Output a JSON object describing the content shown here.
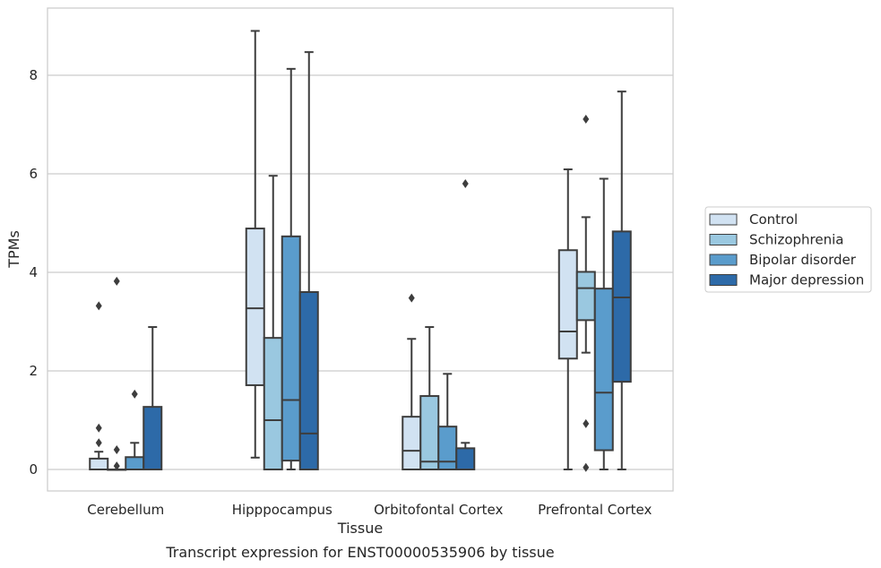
{
  "chart_data": {
    "type": "box",
    "xlabel": "Tissue",
    "ylabel": "TPMs",
    "caption": "Transcript expression for ENST00000535906 by tissue",
    "ylim": [
      -0.42,
      9.3
    ],
    "yticks": [
      "0",
      "2",
      "4",
      "6",
      "8"
    ],
    "grid": "horizontal",
    "legend_position": "right",
    "categories": [
      "Cerebellum",
      "Hipppocampus",
      "Orbitofontal Cortex",
      "Prefrontal Cortex"
    ],
    "series": [
      {
        "name": "Control",
        "color": "#d1e2f2",
        "boxes": [
          {
            "whislo": 0.0,
            "q1": 0.0,
            "med": 0.0,
            "q3": 0.22,
            "whishi": 0.36,
            "fliers": [
              0.54,
              0.84,
              3.32
            ]
          },
          {
            "whislo": 0.24,
            "q1": 1.71,
            "med": 3.27,
            "q3": 4.89,
            "whishi": 8.9,
            "fliers": []
          },
          {
            "whislo": 0.0,
            "q1": 0.0,
            "med": 0.38,
            "q3": 1.07,
            "whishi": 2.65,
            "fliers": [
              3.48
            ]
          },
          {
            "whislo": 0.0,
            "q1": 2.25,
            "med": 2.8,
            "q3": 4.45,
            "whishi": 6.09,
            "fliers": []
          }
        ]
      },
      {
        "name": "Schizophrenia",
        "color": "#9ac8e0",
        "boxes": [
          {
            "whislo": 0.0,
            "q1": 0.0,
            "med": 0.0,
            "q3": 0.0,
            "whishi": 0.0,
            "fliers": [
              0.07,
              0.4,
              3.82
            ]
          },
          {
            "whislo": 0.0,
            "q1": 0.0,
            "med": 1.0,
            "q3": 2.67,
            "whishi": 5.96,
            "fliers": []
          },
          {
            "whislo": 0.0,
            "q1": 0.0,
            "med": 0.16,
            "q3": 1.49,
            "whishi": 2.89,
            "fliers": []
          },
          {
            "whislo": 2.37,
            "q1": 3.03,
            "med": 3.68,
            "q3": 4.01,
            "whishi": 5.12,
            "fliers": [
              0.04,
              0.93,
              7.11
            ]
          }
        ]
      },
      {
        "name": "Bipolar disorder",
        "color": "#5a9ccc",
        "boxes": [
          {
            "whislo": 0.0,
            "q1": 0.0,
            "med": 0.0,
            "q3": 0.25,
            "whishi": 0.54,
            "fliers": [
              1.53
            ]
          },
          {
            "whislo": 0.0,
            "q1": 0.18,
            "med": 1.41,
            "q3": 4.73,
            "whishi": 8.13,
            "fliers": []
          },
          {
            "whislo": 0.0,
            "q1": 0.0,
            "med": 0.16,
            "q3": 0.87,
            "whishi": 1.94,
            "fliers": []
          },
          {
            "whislo": 0.0,
            "q1": 0.39,
            "med": 1.56,
            "q3": 3.67,
            "whishi": 5.9,
            "fliers": []
          }
        ]
      },
      {
        "name": "Major depression",
        "color": "#2d6aa8",
        "boxes": [
          {
            "whislo": 0.0,
            "q1": 0.0,
            "med": 0.0,
            "q3": 1.27,
            "whishi": 2.89,
            "fliers": []
          },
          {
            "whislo": 0.0,
            "q1": 0.0,
            "med": 0.73,
            "q3": 3.6,
            "whishi": 8.47,
            "fliers": []
          },
          {
            "whislo": 0.0,
            "q1": 0.0,
            "med": 0.0,
            "q3": 0.43,
            "whishi": 0.54,
            "fliers": [
              5.8
            ]
          },
          {
            "whislo": 0.0,
            "q1": 1.78,
            "med": 3.49,
            "q3": 4.83,
            "whishi": 7.67,
            "fliers": []
          }
        ]
      }
    ]
  }
}
